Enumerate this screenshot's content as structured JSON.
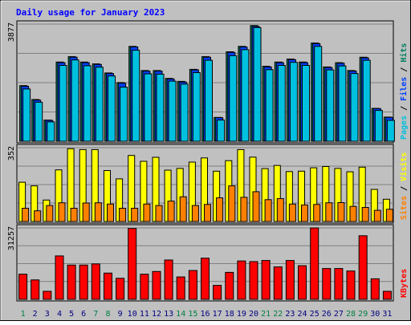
{
  "chart_data": {
    "type": "bar",
    "title": "Daily usage for January 2023",
    "categories": [
      "1",
      "2",
      "3",
      "4",
      "5",
      "6",
      "7",
      "8",
      "9",
      "10",
      "11",
      "12",
      "13",
      "14",
      "15",
      "16",
      "17",
      "18",
      "19",
      "20",
      "21",
      "22",
      "23",
      "24",
      "25",
      "26",
      "27",
      "28",
      "29",
      "30",
      "31"
    ],
    "weekend_days": [
      1,
      7,
      8,
      14,
      15,
      21,
      22,
      28,
      29
    ],
    "panels": [
      {
        "id": "top",
        "ymax_label": "3877",
        "ylim": [
          0,
          3877
        ],
        "ylabel_parts": [
          {
            "text": "Pages",
            "color": "#00c0e0"
          },
          {
            "text": " / ",
            "color": "#000000"
          },
          {
            "text": "Files",
            "color": "#0040ff"
          },
          {
            "text": " / ",
            "color": "#000000"
          },
          {
            "text": "Hits",
            "color": "#008060"
          }
        ],
        "series": [
          {
            "name": "Hits",
            "color": "#008060",
            "values": [
              1840,
              1380,
              700,
              2620,
              2800,
              2620,
              2560,
              2260,
              1940,
              3140,
              2340,
              2340,
              2080,
              1980,
              2380,
              2800,
              790,
              2960,
              3140,
              3830,
              2480,
              2620,
              2720,
              2620,
              3250,
              2460,
              2600,
              2340,
              2780,
              1090,
              800
            ]
          },
          {
            "name": "Files",
            "color": "#0040ff",
            "values": [
              1820,
              1360,
              690,
              2600,
              2780,
              2600,
              2540,
              2240,
              1920,
              3120,
              2320,
              2320,
              2060,
              1960,
              2360,
              2780,
              780,
              2940,
              3120,
              3800,
              2460,
              2600,
              2700,
              2600,
              3230,
              2440,
              2580,
              2320,
              2760,
              1080,
              790
            ]
          },
          {
            "name": "Pages",
            "color": "#00c0e0",
            "values": [
              1730,
              1290,
              640,
              2510,
              2690,
              2500,
              2450,
              2160,
              1790,
              3010,
              2230,
              2220,
              1990,
              1890,
              2270,
              2680,
              700,
              2830,
              3030,
              3760,
              2370,
              2510,
              2610,
              2510,
              3140,
              2360,
              2490,
              2240,
              2680,
              1020,
              690
            ]
          }
        ]
      },
      {
        "id": "middle",
        "ymax_label": "352",
        "ylim": [
          0,
          352
        ],
        "ylabel_parts": [
          {
            "text": "Sites",
            "color": "#ff8000"
          },
          {
            "text": " / ",
            "color": "#000000"
          },
          {
            "text": "Visits",
            "color": "#ffff00"
          }
        ],
        "series": [
          {
            "name": "Visits",
            "color": "#ffff00",
            "values": [
              187,
              170,
              102,
              246,
              347,
              343,
              343,
              243,
              203,
              315,
              287,
              306,
              245,
              253,
              283,
              303,
              240,
              290,
              343,
              307,
              252,
              267,
              238,
              240,
              256,
              262,
              253,
              237,
              259,
              153,
              106
            ]
          },
          {
            "name": "Sites",
            "color": "#ff8000",
            "values": [
              63,
              51,
              76,
              89,
              63,
              88,
              89,
              83,
              63,
              63,
              83,
              76,
              97,
              118,
              76,
              81,
              113,
              170,
              115,
              142,
              104,
              109,
              83,
              79,
              81,
              89,
              90,
              72,
              67,
              53,
              58
            ]
          }
        ]
      },
      {
        "id": "bottom",
        "ymax_label": "31257",
        "ylim": [
          0,
          31257
        ],
        "ylabel_parts": [
          {
            "text": "KBytes",
            "color": "#ff0000"
          }
        ],
        "series": [
          {
            "name": "KBytes",
            "color": "#ff0000",
            "values": [
              11000,
              8500,
              3500,
              19000,
              15000,
              15000,
              15500,
              11500,
              9200,
              31000,
              11000,
              12200,
              17200,
              9800,
              12600,
              18000,
              6100,
              11800,
              16800,
              16500,
              17000,
              14200,
              17000,
              14700,
              31257,
              13500,
              13500,
              12400,
              27800,
              9000,
              3500
            ]
          }
        ]
      }
    ]
  }
}
